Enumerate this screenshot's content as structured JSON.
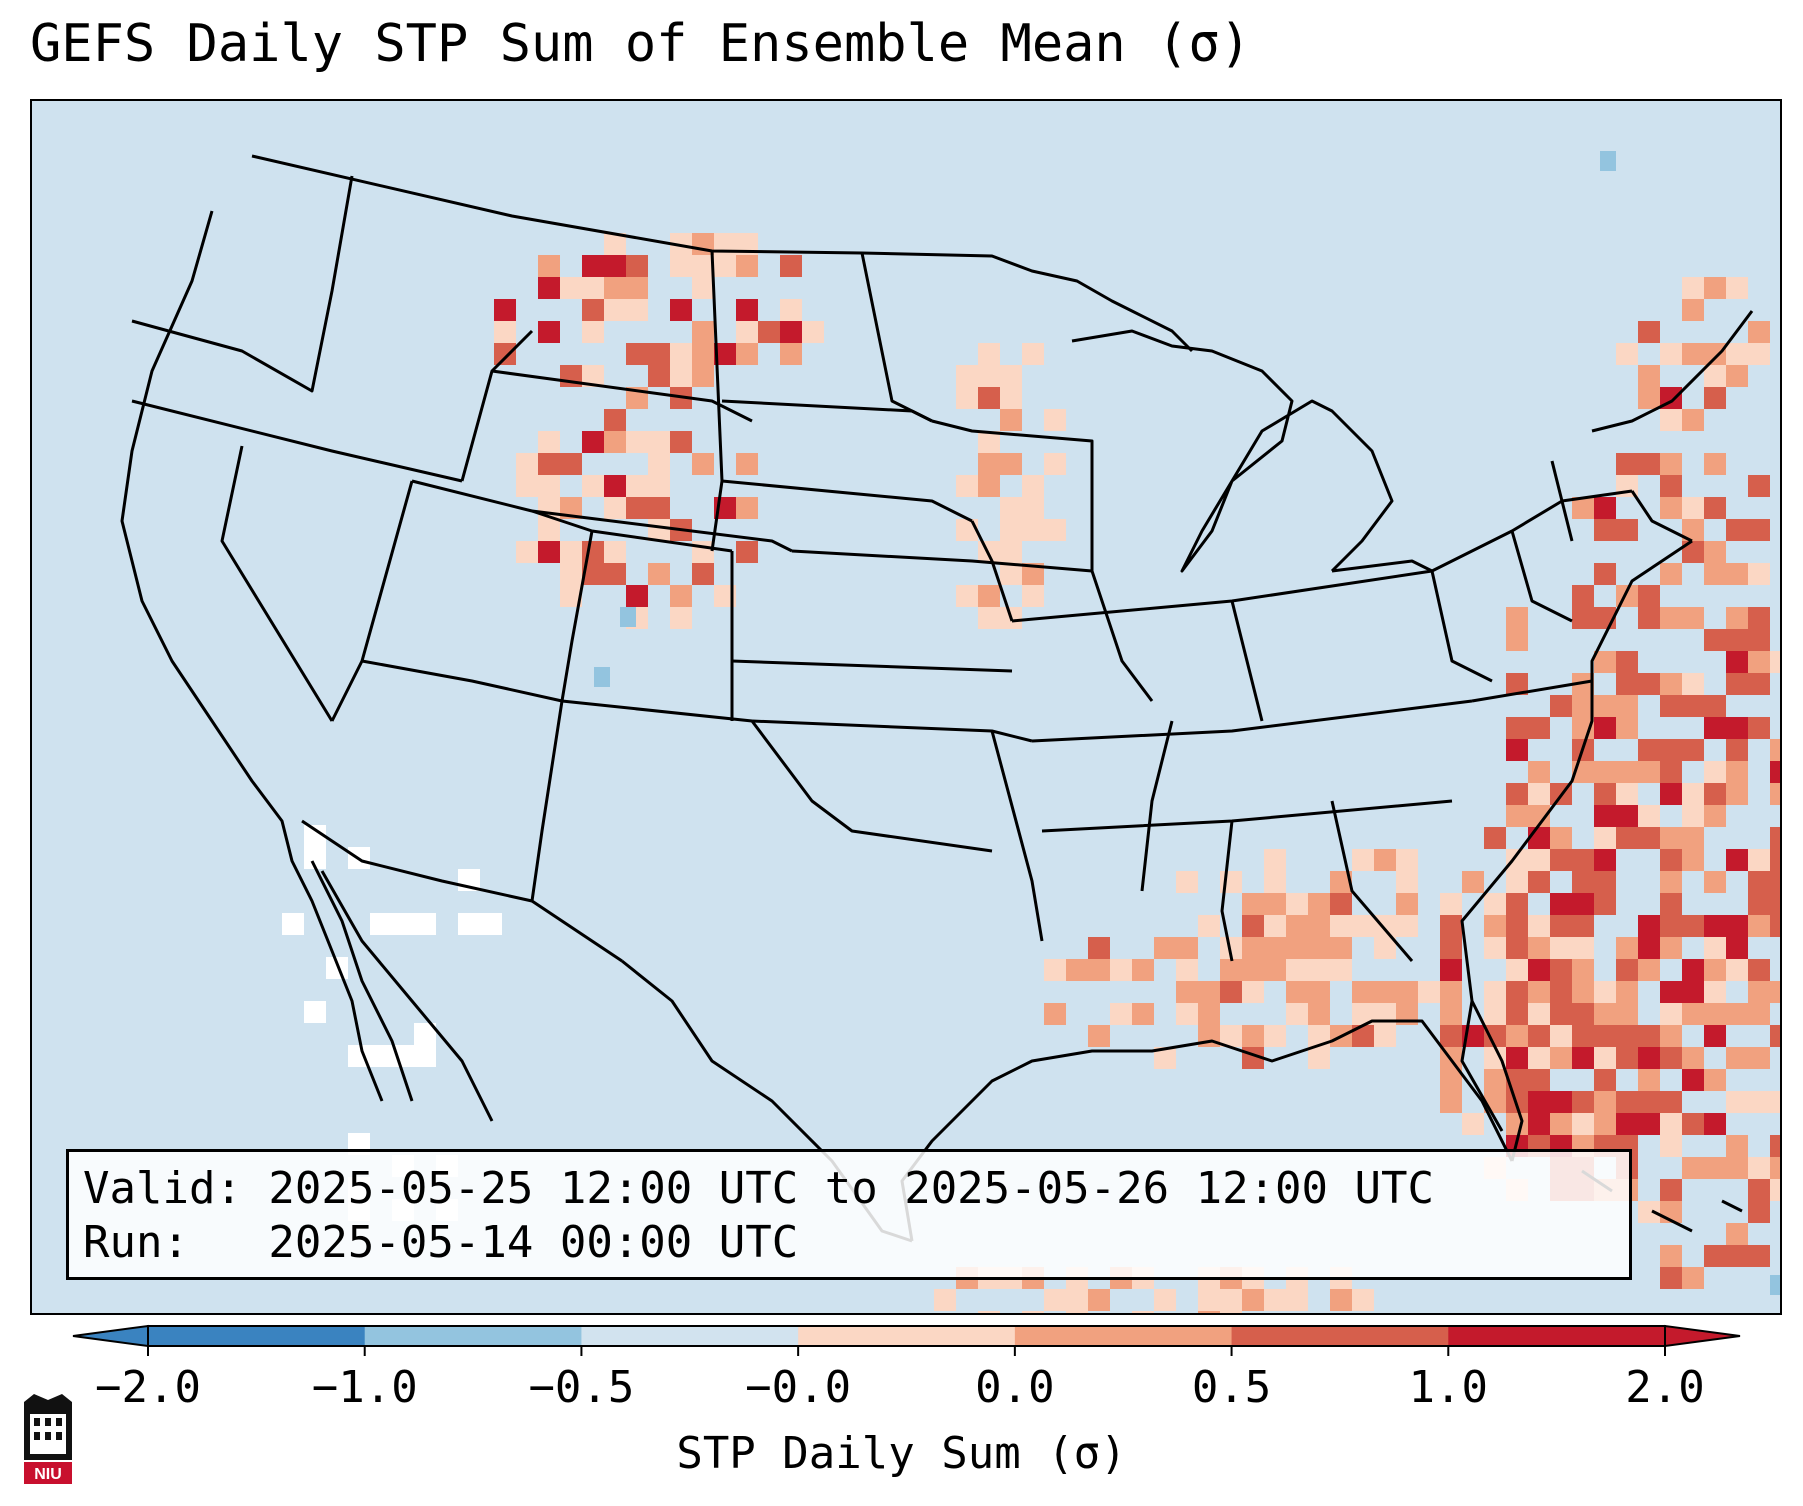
{
  "title": "GEFS Daily STP Sum of Ensemble Mean (σ)",
  "info": {
    "valid_line": "Valid: 2025-05-25 12:00 UTC to 2025-05-26 12:00 UTC",
    "run_line": "Run:   2025-05-14 00:00 UTC"
  },
  "colorbar": {
    "label": "STP Daily Sum (σ)",
    "ticks": [
      "−2.0",
      "−1.0",
      "−0.5",
      "−0.0",
      "0.0",
      "0.5",
      "1.0",
      "2.0"
    ],
    "colors": [
      "#3a83c0",
      "#93c4df",
      "#d2e3ef",
      "#f7f7f7",
      "#fbd7c4",
      "#f1a17f",
      "#d65f4c",
      "#c41a2c"
    ]
  },
  "logo": {
    "text": "NIU",
    "colors": [
      "#111111",
      "#c8102e"
    ]
  },
  "map": {
    "background": "#cfe2ef",
    "border_color": "#000000",
    "fill_levels": [
      "#fbd7c4",
      "#f1a17f",
      "#d65f4c",
      "#c41a2c",
      "#ffffff",
      "#93c4df"
    ]
  }
}
